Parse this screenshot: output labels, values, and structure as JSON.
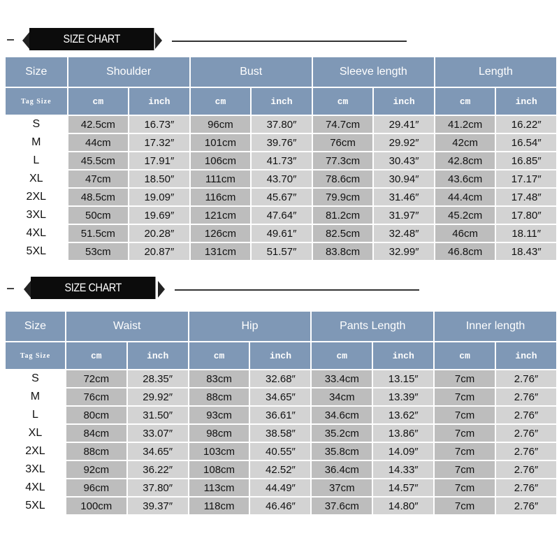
{
  "chart1": {
    "title": "SIZE CHART",
    "header": [
      "Size",
      "Shoulder",
      "Bust",
      "Sleeve length",
      "Length"
    ],
    "units": [
      "Tag Size",
      "cm",
      "inch",
      "cm",
      "inch",
      "cm",
      "inch",
      "cm",
      "inch"
    ],
    "rows": [
      [
        "S",
        "42.5cm",
        "16.73″",
        "96cm",
        "37.80″",
        "74.7cm",
        "29.41″",
        "41.2cm",
        "16.22″"
      ],
      [
        "M",
        "44cm",
        "17.32″",
        "101cm",
        "39.76″",
        "76cm",
        "29.92″",
        "42cm",
        "16.54″"
      ],
      [
        "L",
        "45.5cm",
        "17.91″",
        "106cm",
        "41.73″",
        "77.3cm",
        "30.43″",
        "42.8cm",
        "16.85″"
      ],
      [
        "XL",
        "47cm",
        "18.50″",
        "111cm",
        "43.70″",
        "78.6cm",
        "30.94″",
        "43.6cm",
        "17.17″"
      ],
      [
        "2XL",
        "48.5cm",
        "19.09″",
        "116cm",
        "45.67″",
        "79.9cm",
        "31.46″",
        "44.4cm",
        "17.48″"
      ],
      [
        "3XL",
        "50cm",
        "19.69″",
        "121cm",
        "47.64″",
        "81.2cm",
        "31.97″",
        "45.2cm",
        "17.80″"
      ],
      [
        "4XL",
        "51.5cm",
        "20.28″",
        "126cm",
        "49.61″",
        "82.5cm",
        "32.48″",
        "46cm",
        "18.11″"
      ],
      [
        "5XL",
        "53cm",
        "20.87″",
        "131cm",
        "51.57″",
        "83.8cm",
        "32.99″",
        "46.8cm",
        "18.43″"
      ]
    ]
  },
  "chart2": {
    "title": "SIZE CHART",
    "header": [
      "Size",
      "Waist",
      "Hip",
      "Pants Length",
      "Inner length"
    ],
    "units": [
      "Tag Size",
      "cm",
      "inch",
      "cm",
      "inch",
      "cm",
      "inch",
      "cm",
      "inch"
    ],
    "rows": [
      [
        "S",
        "72cm",
        "28.35″",
        "83cm",
        "32.68″",
        "33.4cm",
        "13.15″",
        "7cm",
        "2.76″"
      ],
      [
        "M",
        "76cm",
        "29.92″",
        "88cm",
        "34.65″",
        "34cm",
        "13.39″",
        "7cm",
        "2.76″"
      ],
      [
        "L",
        "80cm",
        "31.50″",
        "93cm",
        "36.61″",
        "34.6cm",
        "13.62″",
        "7cm",
        "2.76″"
      ],
      [
        "XL",
        "84cm",
        "33.07″",
        "98cm",
        "38.58″",
        "35.2cm",
        "13.86″",
        "7cm",
        "2.76″"
      ],
      [
        "2XL",
        "88cm",
        "34.65″",
        "103cm",
        "40.55″",
        "35.8cm",
        "14.09″",
        "7cm",
        "2.76″"
      ],
      [
        "3XL",
        "92cm",
        "36.22″",
        "108cm",
        "42.52″",
        "36.4cm",
        "14.33″",
        "7cm",
        "2.76″"
      ],
      [
        "4XL",
        "96cm",
        "37.80″",
        "113cm",
        "44.49″",
        "37cm",
        "14.57″",
        "7cm",
        "2.76″"
      ],
      [
        "5XL",
        "100cm",
        "39.37″",
        "118cm",
        "46.46″",
        "37.6cm",
        "14.80″",
        "7cm",
        "2.76″"
      ]
    ]
  },
  "colors": {
    "header_bg": "#7f98b6",
    "cm_cell_bg": "#bdbdbd",
    "inch_cell_bg": "#d3d3d3",
    "banner_bg": "#0c0c0c"
  }
}
